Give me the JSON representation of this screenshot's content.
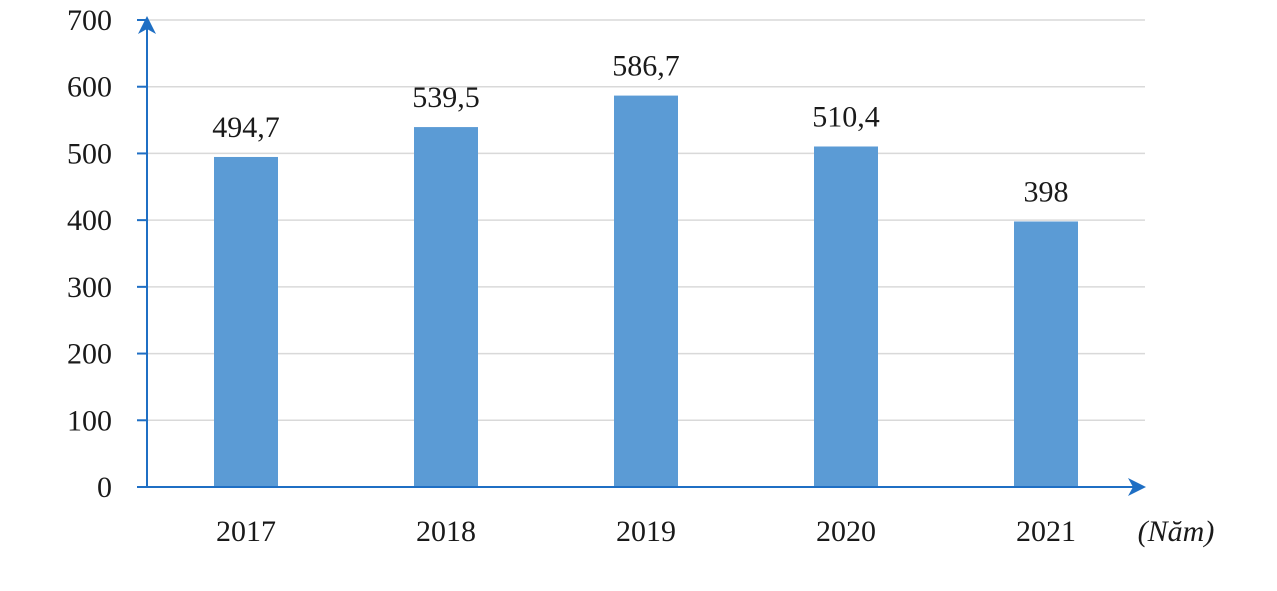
{
  "chart_data": {
    "type": "bar",
    "categories": [
      "2017",
      "2018",
      "2019",
      "2020",
      "2021"
    ],
    "values": [
      494.7,
      539.5,
      586.7,
      510.4,
      398
    ],
    "value_labels": [
      "494,7",
      "539,5",
      "586,7",
      "510,4",
      "398"
    ],
    "yticks": [
      0,
      100,
      200,
      300,
      400,
      500,
      600,
      700
    ],
    "ylim": [
      0,
      700
    ],
    "xlabel": "(Năm)",
    "ylabel": "",
    "grid": true,
    "colors": {
      "bar": "#5b9bd5",
      "axis": "#1f6fc4",
      "grid": "#d9d9d9"
    }
  }
}
